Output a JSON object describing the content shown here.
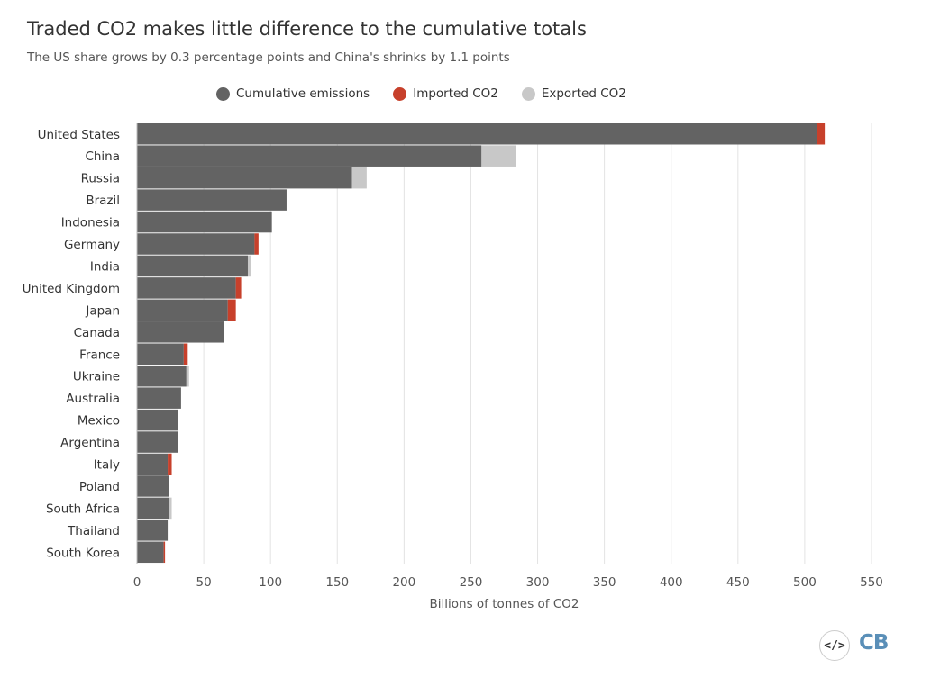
{
  "header": {
    "title": "Traded CO2 makes little difference to the cumulative totals",
    "subtitle": "The US share grows by 0.3 percentage points and China's shrinks by 1.1 points"
  },
  "legend": [
    {
      "label": "Cumulative emissions",
      "color": "#636363"
    },
    {
      "label": "Imported CO2",
      "color": "#c7402b"
    },
    {
      "label": "Exported CO2",
      "color": "#c8c8c8"
    }
  ],
  "chart_data": {
    "type": "bar",
    "orientation": "horizontal",
    "stacked": true,
    "title": "Traded CO2 makes little difference to the cumulative totals",
    "xlabel": "Billions of tonnes of CO2",
    "ylabel": "",
    "xlim": [
      0,
      550
    ],
    "xticks": [
      0,
      50,
      100,
      150,
      200,
      250,
      300,
      350,
      400,
      450,
      500,
      550
    ],
    "grid": true,
    "legend_position": "top-center",
    "categories": [
      "United States",
      "China",
      "Russia",
      "Brazil",
      "Indonesia",
      "Germany",
      "India",
      "United Kingdom",
      "Japan",
      "Canada",
      "France",
      "Ukraine",
      "Australia",
      "Mexico",
      "Argentina",
      "Italy",
      "Poland",
      "South Africa",
      "Thailand",
      "South Korea"
    ],
    "series": [
      {
        "name": "Cumulative emissions",
        "color": "#636363",
        "values": [
          509,
          258,
          161,
          112,
          101,
          88,
          83,
          74,
          68,
          65,
          35,
          37,
          33,
          31,
          31,
          23,
          24,
          24,
          23,
          20
        ]
      },
      {
        "name": "Imported CO2",
        "color": "#c7402b",
        "values": [
          6,
          0,
          0,
          0,
          0,
          3,
          0,
          4,
          6,
          0,
          3,
          0,
          0,
          0,
          0,
          3,
          0,
          0,
          0,
          1
        ]
      },
      {
        "name": "Exported CO2",
        "color": "#c8c8c8",
        "values": [
          0,
          26,
          11,
          0,
          0,
          0,
          2,
          0,
          0,
          0,
          0,
          2,
          0,
          0,
          0,
          0,
          0,
          2,
          0,
          0
        ]
      }
    ]
  },
  "footer": {
    "embed_label": "</>",
    "brand": "CB"
  }
}
